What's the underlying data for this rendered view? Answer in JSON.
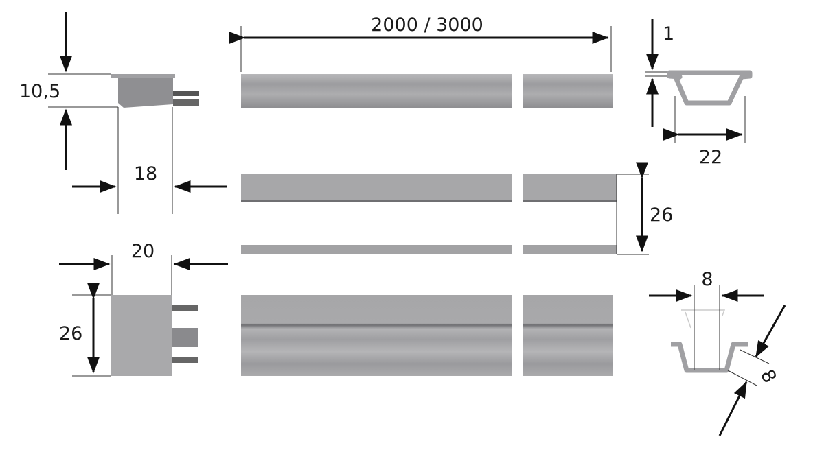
{
  "drawing": {
    "labels": {
      "length": "2000 / 3000",
      "end_cap_height": "10,5",
      "end_cap_width_top": "18",
      "end_cap_width_bottom": "20",
      "end_cap_height_bottom": "26",
      "profile_side_height": "26",
      "wall_thickness": "1",
      "profile_width": "22",
      "inner_width": "8",
      "diagonal_depth": "8"
    },
    "colors": {
      "profile": "#a9a9ab",
      "profile_dark": "#7d7d80",
      "dimension": "#111111"
    }
  }
}
